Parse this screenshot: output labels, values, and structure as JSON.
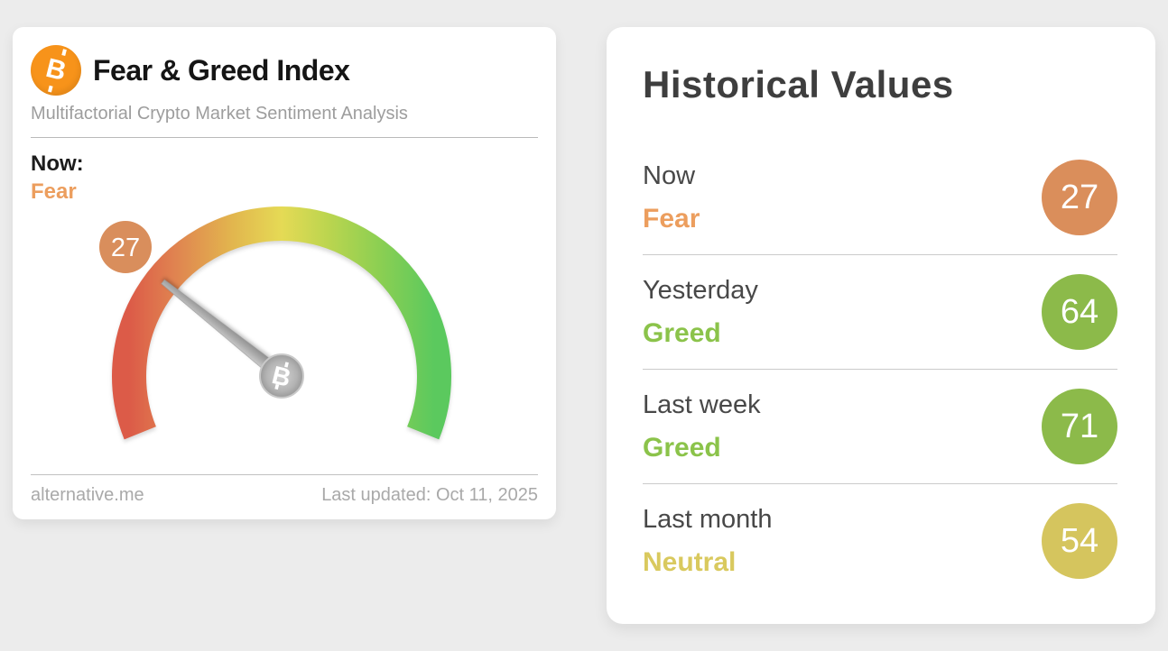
{
  "page": {
    "background": "#ececec"
  },
  "icons": {
    "bitcoin_glyph": "B"
  },
  "gauge_card": {
    "title": "Fear & Greed Index",
    "subtitle": "Multifactorial Crypto Market Sentiment Analysis",
    "now_label": "Now:",
    "now_sentiment": "Fear",
    "sentiment_color": "#ec9e5e",
    "bitcoin_icon_color": "#f7931a",
    "gauge": {
      "value": 27,
      "min": 0,
      "max": 100,
      "badge_color": "#d98e5c",
      "arc_colors": [
        "#dc5b48",
        "#e08350",
        "#e2b64e",
        "#e5da55",
        "#bcd54f",
        "#8ccf52",
        "#5bc95e"
      ],
      "needle_color": "#a5a5a5"
    },
    "footer": {
      "source": "alternative.me",
      "last_updated": "Last updated: Oct 11, 2025"
    }
  },
  "historical_card": {
    "title": "Historical Values",
    "rows": [
      {
        "label": "Now",
        "sentiment": "Fear",
        "value": "27",
        "text_color": "#ec9e5e",
        "badge_color": "#da8e5b"
      },
      {
        "label": "Yesterday",
        "sentiment": "Greed",
        "value": "64",
        "text_color": "#8bc34a",
        "badge_color": "#8cba4a"
      },
      {
        "label": "Last week",
        "sentiment": "Greed",
        "value": "71",
        "text_color": "#8bc34a",
        "badge_color": "#8cba4a"
      },
      {
        "label": "Last month",
        "sentiment": "Neutral",
        "value": "54",
        "text_color": "#d9c95e",
        "badge_color": "#d5c55e"
      }
    ]
  },
  "chart_data": {
    "type": "gauge",
    "title": "Fear & Greed Index",
    "subtitle": "Multifactorial Crypto Market Sentiment Analysis",
    "current_value": 27,
    "current_classification": "Fear",
    "scale_min": 0,
    "scale_max": 100,
    "scale_description": "semicircular gauge, red (fear) on left through yellow (neutral) at top to green (greed) on right; needle points at 27",
    "historical_values": [
      {
        "period": "Now",
        "classification": "Fear",
        "value": 27
      },
      {
        "period": "Yesterday",
        "classification": "Greed",
        "value": 64
      },
      {
        "period": "Last week",
        "classification": "Greed",
        "value": 71
      },
      {
        "period": "Last month",
        "classification": "Neutral",
        "value": 54
      }
    ],
    "source": "alternative.me",
    "last_updated": "Oct 11, 2025"
  }
}
